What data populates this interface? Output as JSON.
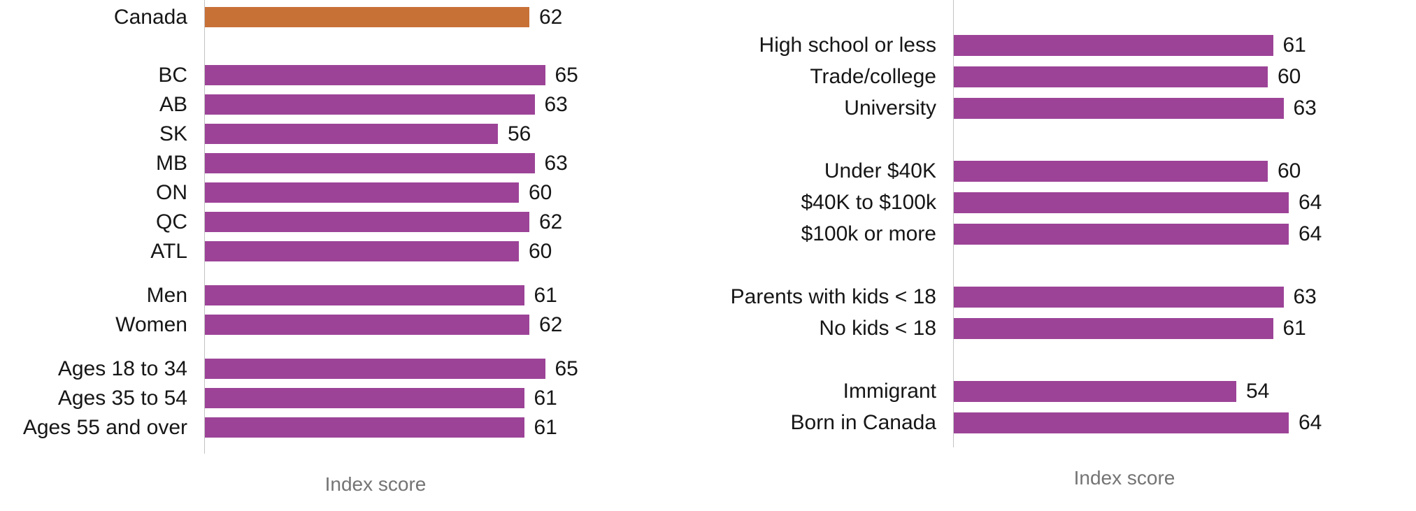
{
  "colors": {
    "bar": "#9c4397",
    "highlight": "#c87137",
    "axis_line": "#c3c3c3",
    "text": "#161616",
    "muted_text": "#747474"
  },
  "chart_data": [
    {
      "type": "bar",
      "orientation": "horizontal",
      "title": "",
      "xlabel": "Index score",
      "ylabel": "",
      "xlim": [
        0,
        70
      ],
      "grid": false,
      "legend": false,
      "highlight_color_note": "Canada bar is orange, all others purple",
      "groups": [
        {
          "rows": [
            {
              "label": "Canada",
              "value": 62,
              "highlight": true
            }
          ]
        },
        {
          "rows": [
            {
              "label": "BC",
              "value": 65
            },
            {
              "label": "AB",
              "value": 63
            },
            {
              "label": "SK",
              "value": 56
            },
            {
              "label": "MB",
              "value": 63
            },
            {
              "label": "ON",
              "value": 60
            },
            {
              "label": "QC",
              "value": 62
            },
            {
              "label": "ATL",
              "value": 60
            }
          ]
        },
        {
          "rows": [
            {
              "label": "Men",
              "value": 61
            },
            {
              "label": "Women",
              "value": 62
            }
          ]
        },
        {
          "rows": [
            {
              "label": "Ages 18 to 34",
              "value": 65
            },
            {
              "label": "Ages 35 to 54",
              "value": 61
            },
            {
              "label": "Ages 55 and over",
              "value": 61
            }
          ]
        }
      ]
    },
    {
      "type": "bar",
      "orientation": "horizontal",
      "title": "",
      "xlabel": "Index score",
      "ylabel": "",
      "xlim": [
        0,
        70
      ],
      "grid": false,
      "legend": false,
      "groups": [
        {
          "rows": [
            {
              "label": "High school or less",
              "value": 61
            },
            {
              "label": "Trade/college",
              "value": 60
            },
            {
              "label": "University",
              "value": 63
            }
          ]
        },
        {
          "rows": [
            {
              "label": "Under $40K",
              "value": 60
            },
            {
              "label": "$40K to $100k",
              "value": 64
            },
            {
              "label": "$100k or more",
              "value": 64
            }
          ]
        },
        {
          "rows": [
            {
              "label": "Parents with kids < 18",
              "value": 63
            },
            {
              "label": "No kids < 18",
              "value": 61
            }
          ]
        },
        {
          "rows": [
            {
              "label": "Immigrant",
              "value": 54
            },
            {
              "label": "Born in Canada",
              "value": 64
            }
          ]
        }
      ]
    }
  ]
}
